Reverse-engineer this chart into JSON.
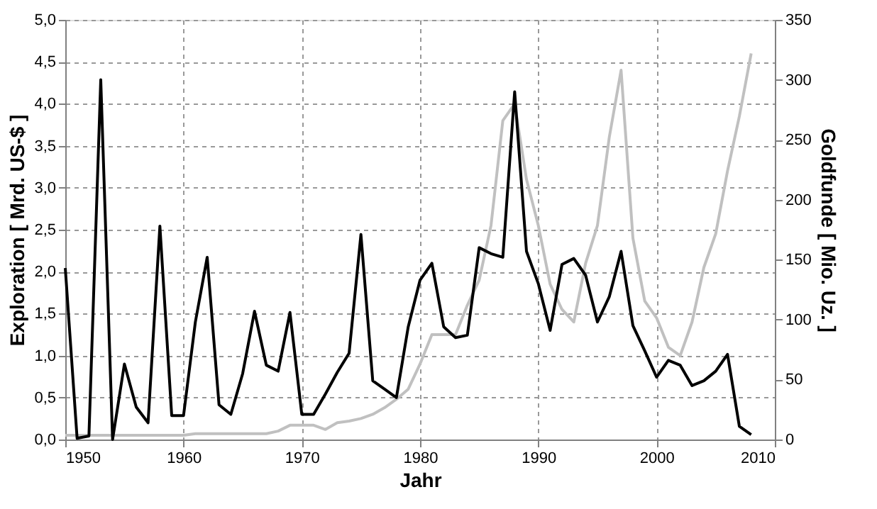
{
  "chart_data": {
    "type": "line",
    "xlabel": "Jahr",
    "ylabel": "Exploration [ Mrd. US-$ ]",
    "y2label": "Goldfunde [ Mio. Uz. ]",
    "x": [
      1950,
      1951,
      1952,
      1953,
      1954,
      1955,
      1956,
      1957,
      1958,
      1959,
      1960,
      1961,
      1962,
      1963,
      1964,
      1965,
      1966,
      1967,
      1968,
      1969,
      1970,
      1971,
      1972,
      1973,
      1974,
      1975,
      1976,
      1977,
      1978,
      1979,
      1980,
      1981,
      1982,
      1983,
      1984,
      1985,
      1986,
      1987,
      1988,
      1989,
      1990,
      1991,
      1992,
      1993,
      1994,
      1995,
      1996,
      1997,
      1998,
      1999,
      2000,
      2001,
      2002,
      2003,
      2004,
      2005,
      2006,
      2007,
      2008
    ],
    "series": [
      {
        "color": "#c0c0c0",
        "values": [
          0.05,
          0.05,
          0.05,
          0.05,
          0.05,
          0.05,
          0.05,
          0.05,
          0.05,
          0.05,
          0.05,
          0.07,
          0.07,
          0.07,
          0.07,
          0.07,
          0.07,
          0.07,
          0.1,
          0.17,
          0.17,
          0.17,
          0.12,
          0.2,
          0.22,
          0.25,
          0.3,
          0.38,
          0.48,
          0.6,
          0.9,
          1.25,
          1.25,
          1.25,
          1.6,
          1.9,
          2.55,
          3.8,
          4.0,
          3.1,
          2.55,
          1.85,
          1.55,
          1.4,
          2.1,
          2.55,
          3.6,
          4.4,
          2.4,
          1.65,
          1.45,
          1.1,
          1.0,
          1.4,
          2.05,
          2.45,
          3.2,
          3.85,
          4.6
        ]
      },
      {
        "color": "#000000",
        "axis": "y2",
        "values": [
          143,
          1,
          3,
          300,
          0,
          63,
          27,
          14,
          178,
          20,
          20,
          98,
          152,
          29,
          21,
          55,
          107,
          62,
          57,
          106,
          21,
          21,
          38,
          56,
          72,
          171,
          49,
          42,
          35,
          94,
          133,
          147,
          94,
          85,
          87,
          160,
          155,
          152,
          290,
          157,
          130,
          91,
          146,
          151,
          137,
          98,
          119,
          157,
          95,
          74,
          52,
          66,
          62,
          45,
          49,
          57,
          71,
          11,
          4
        ]
      }
    ],
    "xlim": [
      1950,
      2010
    ],
    "xticks": [
      1950,
      1960,
      1970,
      1980,
      1990,
      2000,
      2010
    ],
    "ylim": [
      0,
      5
    ],
    "yticks": [
      {
        "value": 0,
        "label": "0,0"
      },
      {
        "value": 0.5,
        "label": "0,5"
      },
      {
        "value": 1,
        "label": "1,0"
      },
      {
        "value": 1.5,
        "label": "1,5"
      },
      {
        "value": 2,
        "label": "2,0"
      },
      {
        "value": 2.5,
        "label": "2,5"
      },
      {
        "value": 3,
        "label": "3,0"
      },
      {
        "value": 3.5,
        "label": "3,5"
      },
      {
        "value": 4,
        "label": "4,0"
      },
      {
        "value": 4.5,
        "label": "4,5"
      },
      {
        "value": 5,
        "label": "5,0"
      }
    ],
    "y2lim": [
      0,
      350
    ],
    "y2ticks": [
      0,
      50,
      100,
      150,
      200,
      250,
      300,
      350
    ],
    "grid": true,
    "marker": "none",
    "line_style": "solid"
  }
}
